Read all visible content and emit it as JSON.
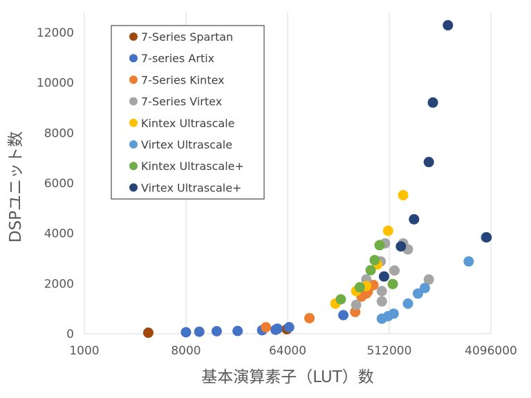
{
  "chart_data": {
    "type": "scatter",
    "title": "",
    "xlabel": "基本演算素子（LUT）数",
    "ylabel": "DSPユニット数",
    "x_scale": "log2",
    "xlim": [
      1000,
      4096000
    ],
    "ylim": [
      0,
      12800
    ],
    "x_ticks": [
      1000,
      8000,
      64000,
      512000,
      4096000
    ],
    "x_tick_labels": [
      "1000",
      "8000",
      "64000",
      "512000",
      "4096000"
    ],
    "y_ticks": [
      0,
      2000,
      4000,
      6000,
      8000,
      10000,
      12000
    ],
    "y_tick_labels": [
      "0",
      "2000",
      "4000",
      "6000",
      "8000",
      "10000",
      "12000"
    ],
    "grid": "vertical",
    "legend": "top-left",
    "series": [
      {
        "name": "7-Series Spartan",
        "color": "#9E480E",
        "points": [
          [
            3700,
            40
          ],
          [
            51000,
            180
          ],
          [
            63000,
            180
          ]
        ]
      },
      {
        "name": "7-series Artix",
        "color": "#4472C4",
        "points": [
          [
            8000,
            60
          ],
          [
            10500,
            80
          ],
          [
            15000,
            100
          ],
          [
            23000,
            110
          ],
          [
            38000,
            140
          ],
          [
            50000,
            160
          ],
          [
            52000,
            200
          ],
          [
            66000,
            260
          ],
          [
            200000,
            740
          ]
        ]
      },
      {
        "name": "7-Series Kintex",
        "color": "#ED7D31",
        "points": [
          [
            41000,
            260
          ],
          [
            100000,
            620
          ],
          [
            255000,
            870
          ],
          [
            290000,
            1480
          ],
          [
            320000,
            1600
          ],
          [
            330000,
            1680
          ],
          [
            370000,
            1940
          ]
        ]
      },
      {
        "name": "7-Series Virtex",
        "color": "#A5A5A5",
        "points": [
          [
            260000,
            1150
          ],
          [
            320000,
            2160
          ],
          [
            440000,
            1290
          ],
          [
            440000,
            1700
          ],
          [
            470000,
            3600
          ],
          [
            570000,
            2520
          ],
          [
            680000,
            3600
          ],
          [
            750000,
            3360
          ],
          [
            1150000,
            2160
          ],
          [
            430000,
            2880
          ]
        ]
      },
      {
        "name": "Kintex Ultrascale",
        "color": "#FFC000",
        "points": [
          [
            170000,
            1200
          ],
          [
            260000,
            1700
          ],
          [
            320000,
            1900
          ],
          [
            400000,
            2760
          ],
          [
            500000,
            4100
          ],
          [
            680000,
            5520
          ]
        ]
      },
      {
        "name": "Virtex Ultrascale",
        "color": "#5B9BD5",
        "points": [
          [
            440000,
            600
          ],
          [
            500000,
            700
          ],
          [
            560000,
            800
          ],
          [
            750000,
            1200
          ],
          [
            920000,
            1600
          ],
          [
            1060000,
            1820
          ],
          [
            2600000,
            2880
          ],
          [
            3700000,
            3840
          ]
        ]
      },
      {
        "name": "Kintex Ultrascale+",
        "color": "#70AD47",
        "points": [
          [
            190000,
            1370
          ],
          [
            280000,
            1850
          ],
          [
            350000,
            2530
          ],
          [
            380000,
            2930
          ],
          [
            420000,
            3530
          ],
          [
            550000,
            1980
          ]
        ]
      },
      {
        "name": "Virtex Ultrascale+",
        "color": "#264478",
        "points": [
          [
            460000,
            2280
          ],
          [
            650000,
            3480
          ],
          [
            850000,
            4560
          ],
          [
            1150000,
            6840
          ],
          [
            1250000,
            9210
          ],
          [
            1700000,
            12290
          ],
          [
            3750000,
            3840
          ]
        ]
      }
    ]
  }
}
